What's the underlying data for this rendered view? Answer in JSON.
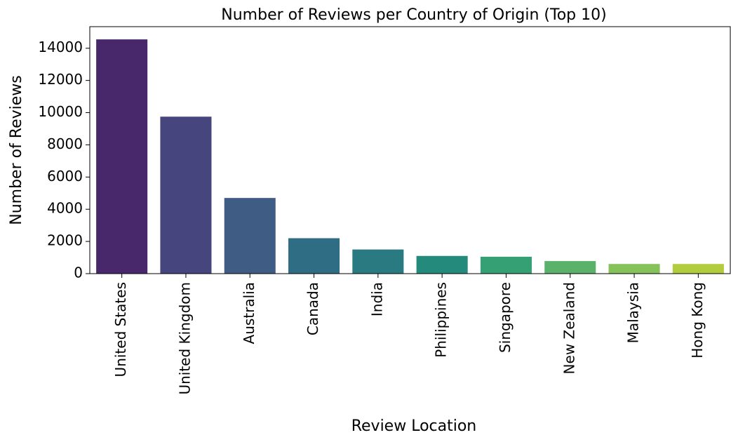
{
  "chart_data": {
    "type": "bar",
    "title": "Number of Reviews per Country of Origin (Top 10)",
    "x_label": "Review Location",
    "y_label": "Number of Reviews",
    "categories": [
      "United States",
      "United Kingdom",
      "Australia",
      "Canada",
      "India",
      "Philippines",
      "Singapore",
      "New Zealand",
      "Malaysia",
      "Hong Kong"
    ],
    "values": [
      14550,
      9750,
      4700,
      2200,
      1500,
      1100,
      1050,
      780,
      600,
      600
    ],
    "colors": [
      "#48286a",
      "#46457d",
      "#3f5c85",
      "#2f6d84",
      "#2a7b81",
      "#248a7c",
      "#34a074",
      "#5ab26a",
      "#86c25a",
      "#b2cc3e"
    ],
    "ylim": [
      0,
      15340
    ],
    "yticks": [
      0,
      2000,
      4000,
      6000,
      8000,
      10000,
      12000,
      14000
    ]
  }
}
